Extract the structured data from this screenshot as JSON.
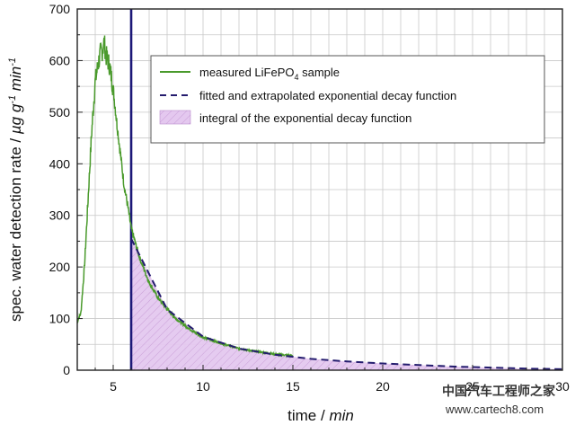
{
  "chart_data": {
    "type": "line",
    "xlabel": "time / min",
    "xlabel_main": "time / ",
    "xlabel_unit": "min",
    "ylabel": "spec. water detection rate / µg g-1 min-1",
    "ylabel_main": "spec. water detection rate / ",
    "ylabel_unit_mu": "µg g",
    "ylabel_sup1": "-1",
    "ylabel_unit_min": " min",
    "ylabel_sup2": "-1",
    "xlim": [
      3,
      30
    ],
    "ylim": [
      0,
      700
    ],
    "x_ticks": [
      {
        "value": 5,
        "label": "5"
      },
      {
        "value": 10,
        "label": "10"
      },
      {
        "value": 15,
        "label": "15"
      },
      {
        "value": 20,
        "label": "20"
      },
      {
        "value": 25,
        "label": "25"
      },
      {
        "value": 30,
        "label": "30"
      }
    ],
    "y_ticks": [
      {
        "value": 0,
        "label": "0"
      },
      {
        "value": 100,
        "label": "100"
      },
      {
        "value": 200,
        "label": "200"
      },
      {
        "value": 300,
        "label": "300"
      },
      {
        "value": 400,
        "label": "400"
      },
      {
        "value": 500,
        "label": "500"
      },
      {
        "value": 600,
        "label": "600"
      },
      {
        "value": 700,
        "label": "700"
      }
    ],
    "grid": true,
    "vertical_marker_x": 6,
    "series": [
      {
        "name": "measured LiFePO4 sample",
        "style": "line",
        "color": "#4a9a2c",
        "x": [
          3.0,
          3.2,
          3.4,
          3.6,
          3.8,
          4.0,
          4.2,
          4.3,
          4.4,
          4.5,
          4.6,
          4.8,
          5.0,
          5.2,
          5.4,
          5.6,
          5.8,
          6.0,
          6.2,
          6.5,
          7.0,
          7.5,
          8.0,
          8.5,
          9.0,
          9.5,
          10.0,
          11.0,
          12.0,
          13.0,
          14.0,
          15.0
        ],
        "y": [
          95,
          110,
          200,
          330,
          460,
          560,
          600,
          615,
          620,
          635,
          610,
          590,
          545,
          480,
          420,
          360,
          320,
          275,
          250,
          215,
          170,
          140,
          118,
          100,
          86,
          74,
          64,
          52,
          42,
          36,
          31,
          28
        ]
      },
      {
        "name": "fitted and extrapolated exponential decay function",
        "style": "dashed",
        "color": "#241c6e",
        "x": [
          6,
          8,
          10,
          12,
          14,
          16,
          18,
          20,
          22,
          24,
          26,
          28,
          30
        ],
        "y": [
          255,
          118,
          65,
          42,
          30,
          22,
          17,
          13,
          10,
          7,
          5,
          3,
          2
        ]
      }
    ],
    "legend": {
      "placement": "top-right",
      "entries": [
        {
          "kind": "line",
          "color": "#4a9a2c",
          "text_main": "measured LiFePO",
          "text_sub": "4",
          "text_tail": " sample"
        },
        {
          "kind": "dashed",
          "color": "#241c6e",
          "text_main": "fitted and extrapolated exponential decay function"
        },
        {
          "kind": "area",
          "color": "#e4c8ef",
          "text_main": "integral of the exponential decay function"
        }
      ]
    },
    "colors": {
      "measured": "#4a9a2c",
      "fit": "#241c6e",
      "integral_fill": "#e4c8ef",
      "marker": "#1c1878",
      "grid": "#c8c8c8"
    }
  },
  "watermark": {
    "line1": "中国汽车工程师之家",
    "line2": "www.cartech8.com"
  }
}
